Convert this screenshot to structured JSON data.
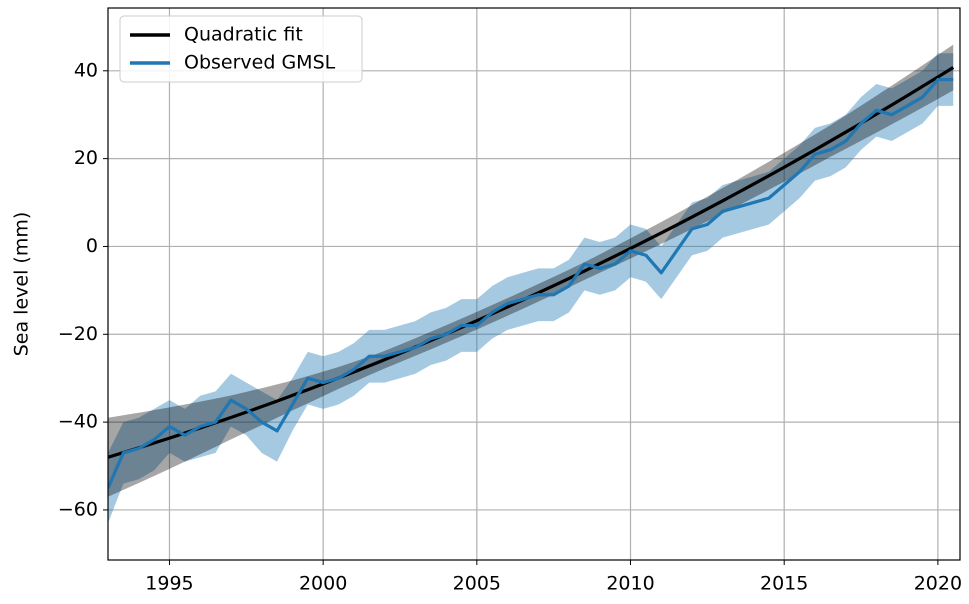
{
  "chart_data": {
    "type": "line",
    "y_label": "Sea level (mm)",
    "x": [
      1993.0,
      1993.5,
      1994.0,
      1994.5,
      1995.0,
      1995.5,
      1996.0,
      1996.5,
      1997.0,
      1997.5,
      1998.0,
      1998.5,
      1999.0,
      1999.5,
      2000.0,
      2000.5,
      2001.0,
      2001.5,
      2002.0,
      2002.5,
      2003.0,
      2003.5,
      2004.0,
      2004.5,
      2005.0,
      2005.5,
      2006.0,
      2006.5,
      2007.0,
      2007.5,
      2008.0,
      2008.5,
      2009.0,
      2009.5,
      2010.0,
      2010.5,
      2011.0,
      2011.5,
      2012.0,
      2012.5,
      2013.0,
      2013.5,
      2014.0,
      2014.5,
      2015.0,
      2015.5,
      2016.0,
      2016.5,
      2017.0,
      2017.5,
      2018.0,
      2018.5,
      2019.0,
      2019.5,
      2020.0,
      2020.5
    ],
    "series": [
      {
        "name": "Quadratic fit",
        "color": "#000000",
        "values": [
          -48.0,
          -46.94,
          -45.86,
          -44.76,
          -43.64,
          -42.49,
          -41.33,
          -40.15,
          -38.94,
          -37.72,
          -36.48,
          -35.21,
          -33.92,
          -32.62,
          -31.29,
          -29.94,
          -28.58,
          -27.19,
          -25.78,
          -24.35,
          -22.9,
          -21.43,
          -19.94,
          -18.43,
          -16.9,
          -15.34,
          -13.77,
          -12.18,
          -10.56,
          -8.93,
          -7.28,
          -5.6,
          -3.9,
          -2.19,
          -0.45,
          1.31,
          3.08,
          4.88,
          6.7,
          8.54,
          10.4,
          12.28,
          14.18,
          16.1,
          18.04,
          20.01,
          21.99,
          24.0,
          26.02,
          28.06,
          30.13,
          32.22,
          34.32,
          36.44,
          38.59,
          40.75
        ],
        "error": [
          9,
          8.5,
          8,
          7.5,
          7,
          6.5,
          6,
          5.5,
          5,
          4.6,
          4.2,
          3.8,
          3.4,
          3.1,
          2.8,
          2.5,
          2.3,
          2.1,
          2,
          2,
          2,
          2,
          2,
          2,
          2,
          2,
          2,
          2,
          2,
          2,
          2,
          2,
          2.1,
          2.2,
          2.3,
          2.4,
          2.5,
          2.6,
          2.7,
          2.8,
          2.9,
          3,
          3.1,
          3.2,
          3.3,
          3.4,
          3.5,
          3.6,
          3.8,
          4,
          4.2,
          4.4,
          4.6,
          4.8,
          5,
          5.2
        ]
      },
      {
        "name": "Observed GMSL",
        "color": "#1f77b4",
        "values": [
          -55,
          -47,
          -46,
          -44,
          -41,
          -43,
          -41,
          -40,
          -35,
          -37,
          -40,
          -42,
          -36,
          -30,
          -31,
          -30,
          -28,
          -25,
          -25,
          -24,
          -23,
          -21,
          -20,
          -18,
          -18,
          -15,
          -13,
          -12,
          -11,
          -11,
          -9,
          -4,
          -5,
          -4,
          -1,
          -2,
          -6,
          -1,
          4,
          5,
          8,
          9,
          10,
          11,
          14,
          17,
          21,
          22,
          24,
          28,
          31,
          30,
          32,
          34,
          38,
          38
        ],
        "error": [
          8,
          7,
          7,
          7,
          6,
          6,
          7,
          7,
          6,
          6,
          7,
          7,
          6,
          6,
          6,
          6,
          6,
          6,
          6,
          6,
          6,
          6,
          6,
          6,
          6,
          6,
          6,
          6,
          6,
          6,
          6,
          6,
          6,
          6,
          6,
          6,
          6,
          6,
          6,
          6,
          6,
          6,
          6,
          6,
          6,
          6,
          6,
          6,
          6,
          6,
          6,
          6,
          6,
          6,
          6,
          6
        ]
      }
    ],
    "xlim": [
      1993.0,
      2020.72
    ],
    "ylim": [
      -71.4,
      54.3
    ],
    "xticks": [
      1995,
      2000,
      2005,
      2010,
      2015,
      2020
    ],
    "yticks": [
      {
        "value": -60,
        "label": "−60"
      },
      {
        "value": -40,
        "label": "−40"
      },
      {
        "value": -20,
        "label": "−20"
      },
      0,
      20,
      40
    ],
    "grid": true,
    "legend": "upper left"
  }
}
